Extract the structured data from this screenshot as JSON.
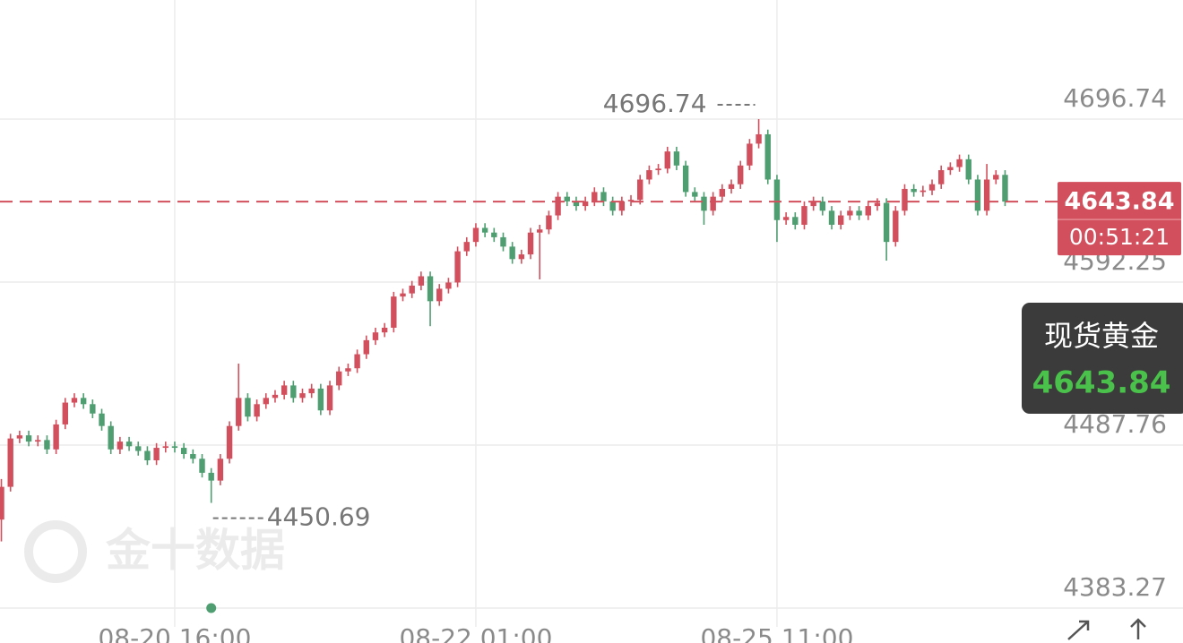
{
  "chart_data": {
    "type": "candlestick",
    "name": "现货黄金",
    "watermark": "金十数据",
    "countdown": "00:51:21",
    "last_price": 4643.84,
    "high_annotation": 4696.74,
    "low_annotation": 4450.69,
    "up_color": "#d2505d",
    "down_color": "#4f9e71",
    "ylim": [
      4383.27,
      4773.1
    ],
    "yticks": [
      4383.27,
      4487.76,
      4592.25,
      4696.74
    ],
    "xlim": [
      -0.15,
      129.5
    ],
    "xticks": [
      {
        "value": 19,
        "label": "08-20 16:00"
      },
      {
        "value": 52,
        "label": "08-22 01:00"
      },
      {
        "value": 85,
        "label": "08-25 11:00"
      }
    ],
    "grid": true,
    "open": [
      4440,
      4461,
      4492,
      4494,
      4490,
      4491,
      4485,
      4501,
      4515,
      4518,
      4514,
      4508,
      4500,
      4485,
      4490,
      4487,
      4484,
      4478,
      4486,
      4487,
      4486,
      4482,
      4479,
      4470,
      4465,
      4479,
      4500,
      4518,
      4506,
      4514,
      4518,
      4520,
      4526,
      4518,
      4521,
      4524,
      4510,
      4526,
      4535,
      4537,
      4546,
      4555,
      4560,
      4563,
      4583,
      4585,
      4590,
      4596,
      4580,
      4588,
      4592,
      4612,
      4618,
      4627,
      4624,
      4621,
      4615,
      4607,
      4610,
      4624,
      4626,
      4635,
      4647,
      4644,
      4641,
      4644,
      4650,
      4644,
      4638,
      4644,
      4645,
      4658,
      4664,
      4665,
      4676,
      4667,
      4650,
      4647,
      4638,
      4647,
      4652,
      4655,
      4667,
      4681,
      4687,
      4658,
      4632,
      4634,
      4629,
      4641,
      4644,
      4638,
      4629,
      4635,
      4638,
      4635,
      4641,
      4643,
      4618,
      4638,
      4652,
      4650,
      4651,
      4655,
      4664,
      4666,
      4671,
      4658,
      4638,
      4658,
      4661
    ],
    "high": [
      4466,
      4495,
      4497,
      4497,
      4494,
      4494,
      4504,
      4518,
      4521,
      4521,
      4517,
      4511,
      4503,
      4493,
      4493,
      4490,
      4487,
      4489,
      4490,
      4490,
      4489,
      4485,
      4482,
      4473,
      4482,
      4503,
      4540,
      4521,
      4517,
      4521,
      4523,
      4529,
      4529,
      4524,
      4527,
      4527,
      4529,
      4538,
      4540,
      4549,
      4558,
      4563,
      4566,
      4586,
      4588,
      4593,
      4599,
      4599,
      4591,
      4595,
      4615,
      4621,
      4630,
      4630,
      4627,
      4624,
      4618,
      4613,
      4627,
      4629,
      4638,
      4650,
      4650,
      4647,
      4647,
      4653,
      4653,
      4647,
      4647,
      4648,
      4661,
      4667,
      4668,
      4679,
      4679,
      4670,
      4653,
      4650,
      4650,
      4655,
      4658,
      4670,
      4684,
      4696.74,
      4690,
      4661,
      4637,
      4637,
      4644,
      4647,
      4647,
      4641,
      4638,
      4641,
      4641,
      4644,
      4646,
      4646,
      4641,
      4655,
      4655,
      4654,
      4658,
      4667,
      4669,
      4674,
      4674,
      4661,
      4668,
      4664,
      4664
    ],
    "low": [
      4426,
      4458,
      4489,
      4487,
      4487,
      4482,
      4482,
      4498,
      4512,
      4511,
      4505,
      4497,
      4482,
      4482,
      4484,
      4481,
      4475,
      4475,
      4483,
      4483,
      4479,
      4476,
      4467,
      4450.69,
      4462,
      4476,
      4497,
      4503,
      4503,
      4511,
      4515,
      4517,
      4515,
      4515,
      4518,
      4507,
      4507,
      4523,
      4532,
      4534,
      4543,
      4552,
      4557,
      4560,
      4580,
      4582,
      4587,
      4564,
      4577,
      4585,
      4589,
      4609,
      4615,
      4621,
      4618,
      4612,
      4604,
      4604,
      4607,
      4594,
      4623,
      4632,
      4641,
      4638,
      4638,
      4641,
      4641,
      4635,
      4635,
      4641,
      4642,
      4655,
      4661,
      4662,
      4664,
      4647,
      4644,
      4629,
      4635,
      4644,
      4649,
      4652,
      4664,
      4678,
      4655,
      4618,
      4629,
      4626,
      4626,
      4638,
      4635,
      4626,
      4626,
      4632,
      4632,
      4632,
      4638,
      4606,
      4615,
      4635,
      4647,
      4647,
      4648,
      4652,
      4661,
      4663,
      4655,
      4635,
      4635,
      4655,
      4641
    ],
    "close": [
      4461,
      4492,
      4494,
      4490,
      4491,
      4485,
      4501,
      4515,
      4518,
      4514,
      4508,
      4500,
      4485,
      4490,
      4487,
      4484,
      4478,
      4486,
      4487,
      4486,
      4482,
      4479,
      4470,
      4465,
      4479,
      4500,
      4518,
      4506,
      4514,
      4518,
      4520,
      4526,
      4518,
      4521,
      4524,
      4510,
      4526,
      4535,
      4537,
      4546,
      4555,
      4560,
      4563,
      4583,
      4585,
      4590,
      4596,
      4580,
      4588,
      4592,
      4612,
      4618,
      4627,
      4624,
      4621,
      4615,
      4607,
      4610,
      4624,
      4626,
      4635,
      4647,
      4644,
      4641,
      4644,
      4650,
      4644,
      4638,
      4644,
      4645,
      4658,
      4664,
      4665,
      4676,
      4667,
      4650,
      4647,
      4638,
      4647,
      4652,
      4655,
      4667,
      4681,
      4687,
      4658,
      4632,
      4634,
      4629,
      4641,
      4644,
      4638,
      4629,
      4635,
      4638,
      4635,
      4641,
      4643,
      4618,
      4638,
      4652,
      4650,
      4651,
      4655,
      4664,
      4666,
      4671,
      4658,
      4638,
      4658,
      4661,
      4643.84
    ]
  }
}
